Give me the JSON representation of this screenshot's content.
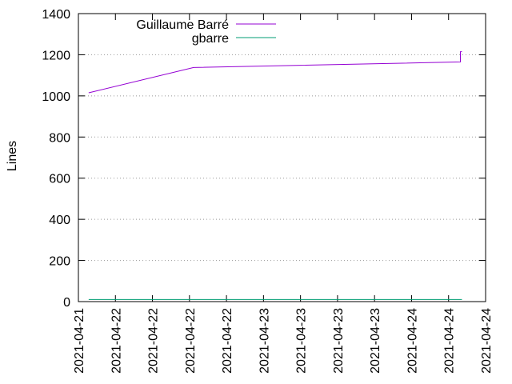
{
  "chart_data": {
    "type": "line",
    "ylabel": "Lines",
    "x": [
      "2021-04-21T19:40",
      "2021-04-22T12:40",
      "2021-04-24T07:55",
      "2021-04-24T07:55",
      "2021-04-24T08:10"
    ],
    "series": [
      {
        "name": "Guillaume Barré",
        "color": "#9400d3",
        "values": [
          1015,
          1138,
          1165,
          1215,
          1215
        ]
      },
      {
        "name": "gbarre",
        "color": "#009e73",
        "values": [
          10,
          10,
          10,
          10,
          10
        ]
      }
    ],
    "xlim": [
      "2021-04-21T18:00",
      "2021-04-24T12:00"
    ],
    "xticks": [
      {
        "value": "2021-04-21T18:00",
        "label": "2021-04-21"
      },
      {
        "value": "2021-04-22T00:00",
        "label": "2021-04-22"
      },
      {
        "value": "2021-04-22T06:00",
        "label": "2021-04-22"
      },
      {
        "value": "2021-04-22T12:00",
        "label": "2021-04-22"
      },
      {
        "value": "2021-04-22T18:00",
        "label": "2021-04-22"
      },
      {
        "value": "2021-04-23T00:00",
        "label": "2021-04-23"
      },
      {
        "value": "2021-04-23T06:00",
        "label": "2021-04-23"
      },
      {
        "value": "2021-04-23T12:00",
        "label": "2021-04-23"
      },
      {
        "value": "2021-04-23T18:00",
        "label": "2021-04-23"
      },
      {
        "value": "2021-04-24T00:00",
        "label": "2021-04-24"
      },
      {
        "value": "2021-04-24T06:00",
        "label": "2021-04-24"
      },
      {
        "value": "2021-04-24T12:00",
        "label": "2021-04-24"
      }
    ],
    "ylim": [
      0,
      1400
    ],
    "yticks": [
      0,
      200,
      400,
      600,
      800,
      1000,
      1200,
      1400
    ],
    "grid": true,
    "legend": "top-left"
  }
}
